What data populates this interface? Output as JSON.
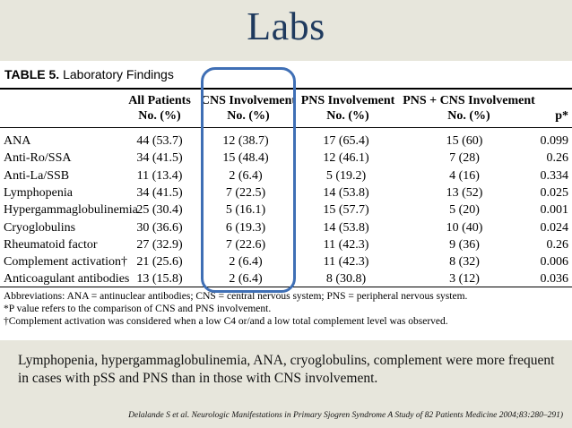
{
  "slide": {
    "title": "Labs",
    "summary": "Lymphopenia, hypergammaglobulinemia, ANA, cryoglobulins, complement were more frequent in cases with pSS and PNS than in those with CNS involvement.",
    "citation": "Delalande S et al. Neurologic Manifestations in Primary Sjogren Syndrome  A Study of 82 Patients  Medicine 2004;83:280–291)"
  },
  "table": {
    "caption_label": "TABLE 5.",
    "caption_title": " Laboratory Findings",
    "columns": [
      {
        "line1": "All Patients",
        "line2": "No. (%)"
      },
      {
        "line1": "CNS Involvement",
        "line2": "No. (%)"
      },
      {
        "line1": "PNS Involvement",
        "line2": "No. (%)"
      },
      {
        "line1": "PNS + CNS Involvement",
        "line2": "No. (%)"
      },
      {
        "line1": "",
        "line2": "p*"
      }
    ],
    "rows": [
      {
        "label": "ANA",
        "all": "44 (53.7)",
        "cns": "12 (38.7)",
        "pns": "17 (65.4)",
        "both": "15 (60)",
        "p": "0.099"
      },
      {
        "label": "Anti-Ro/SSA",
        "all": "34 (41.5)",
        "cns": "15 (48.4)",
        "pns": "12 (46.1)",
        "both": "7 (28)",
        "p": "0.26"
      },
      {
        "label": "Anti-La/SSB",
        "all": "11 (13.4)",
        "cns": "2 (6.4)",
        "pns": "5 (19.2)",
        "both": "4 (16)",
        "p": "0.334"
      },
      {
        "label": "Lymphopenia",
        "all": "34 (41.5)",
        "cns": "7 (22.5)",
        "pns": "14 (53.8)",
        "both": "13 (52)",
        "p": "0.025"
      },
      {
        "label": "Hypergammaglobulinemia",
        "all": "25 (30.4)",
        "cns": "5 (16.1)",
        "pns": "15 (57.7)",
        "both": "5 (20)",
        "p": "0.001"
      },
      {
        "label": "Cryoglobulins",
        "all": "30 (36.6)",
        "cns": "6 (19.3)",
        "pns": "14 (53.8)",
        "both": "10 (40)",
        "p": "0.024"
      },
      {
        "label": "Rheumatoid factor",
        "all": "27 (32.9)",
        "cns": "7 (22.6)",
        "pns": "11 (42.3)",
        "both": "9 (36)",
        "p": "0.26"
      },
      {
        "label": "Complement activation†",
        "all": "21 (25.6)",
        "cns": "2 (6.4)",
        "pns": "11 (42.3)",
        "both": "8 (32)",
        "p": "0.006"
      },
      {
        "label": "Anticoagulant antibodies",
        "all": "13 (15.8)",
        "cns": "2 (6.4)",
        "pns": "8 (30.8)",
        "both": "3 (12)",
        "p": "0.036"
      }
    ],
    "footnotes": [
      "Abbreviations: ANA = antinuclear antibodies; CNS = central nervous system; PNS = peripheral nervous system.",
      "*P value refers to the comparison of CNS and PNS involvement.",
      "†Complement activation was considered when a low C4 or/and a low total complement level was observed."
    ]
  },
  "colors": {
    "background": "#e7e6dc",
    "title": "#1f3a5e",
    "highlight_border": "#3f6fb5"
  }
}
